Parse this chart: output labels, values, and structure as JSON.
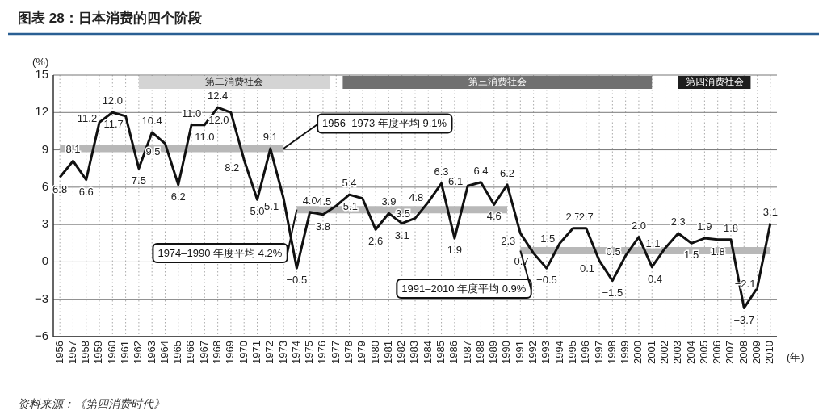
{
  "chart_data": {
    "type": "line",
    "title": "图表 28：日本消费的四个阶段",
    "xlabel": "(年)",
    "ylabel": "(%)",
    "x": [
      1956,
      1957,
      1958,
      1959,
      1960,
      1961,
      1962,
      1963,
      1964,
      1965,
      1966,
      1967,
      1968,
      1969,
      1970,
      1971,
      1972,
      1973,
      1974,
      1975,
      1976,
      1977,
      1978,
      1979,
      1980,
      1981,
      1982,
      1983,
      1984,
      1985,
      1986,
      1987,
      1988,
      1989,
      1990,
      1991,
      1992,
      1993,
      1994,
      1995,
      1996,
      1997,
      1998,
      1999,
      2000,
      2001,
      2002,
      2003,
      2004,
      2005,
      2006,
      2007,
      2008,
      2009,
      2010
    ],
    "xlim": [
      1955.5,
      2010.5
    ],
    "xticks": [
      1956,
      1957,
      1958,
      1959,
      1960,
      1961,
      1962,
      1963,
      1964,
      1965,
      1966,
      1967,
      1968,
      1969,
      1970,
      1971,
      1972,
      1973,
      1974,
      1975,
      1976,
      1977,
      1978,
      1979,
      1980,
      1981,
      1982,
      1983,
      1984,
      1985,
      1986,
      1987,
      1988,
      1989,
      1990,
      1991,
      1992,
      1993,
      1994,
      1995,
      1996,
      1997,
      1998,
      1999,
      2000,
      2001,
      2002,
      2003,
      2004,
      2005,
      2006,
      2007,
      2008,
      2009,
      2010
    ],
    "ylim": [
      -6,
      15
    ],
    "yticks": [
      -6,
      -3,
      0,
      3,
      6,
      9,
      12,
      15
    ],
    "grid": true,
    "series": [
      {
        "color": "#111111",
        "values": [
          6.8,
          8.1,
          6.6,
          11.2,
          12.0,
          11.7,
          7.5,
          10.4,
          9.5,
          6.2,
          11.0,
          11.0,
          12.4,
          12.0,
          8.2,
          5.0,
          9.1,
          5.1,
          -0.5,
          4.0,
          3.8,
          4.5,
          5.4,
          5.1,
          2.6,
          3.9,
          3.1,
          3.5,
          4.8,
          6.3,
          1.9,
          6.1,
          6.4,
          4.6,
          6.2,
          2.3,
          0.7,
          -0.5,
          1.5,
          2.7,
          2.7,
          0.1,
          -1.5,
          0.5,
          2.0,
          -0.4,
          1.1,
          2.3,
          1.5,
          1.9,
          1.8,
          1.8,
          -3.7,
          -2.1,
          3.1
        ],
        "value_labels": [
          "6.8",
          "8.1",
          "6.6",
          "11.2",
          "12.0",
          "11.7",
          "7.5",
          "10.4",
          "9.5",
          "6.2",
          "11.0",
          "11.0",
          "12.4",
          "12.0",
          "8.2",
          "5.0",
          "9.1",
          "5.1",
          "−0.5",
          "4.0",
          "3.8",
          "4.5",
          "5.4",
          "5.1",
          "2.6",
          "3.9",
          "3.1",
          "3.5",
          "4.8",
          "6.3",
          "1.9",
          "6.1",
          "6.4",
          "4.6",
          "6.2",
          "2.3",
          "0.7",
          "−0.5",
          "1.5",
          "2.7",
          "2.7",
          "0.1",
          "−1.5",
          "0.5",
          "2.0",
          "−0.4",
          "1.1",
          "2.3",
          "1.5",
          "1.9",
          "1.8",
          "1.8",
          "−3.7",
          "−2.1",
          "3.1"
        ]
      },
      {
        "type": "line",
        "x": [
          1956,
          1973
        ],
        "values": [
          9.1,
          9.1
        ],
        "color": "#b8b8b8"
      },
      {
        "type": "line",
        "x": [
          1974,
          1990
        ],
        "values": [
          4.2,
          4.2
        ],
        "color": "#b8b8b8"
      },
      {
        "type": "line",
        "x": [
          1991,
          2010
        ],
        "values": [
          0.9,
          0.9
        ],
        "color": "#b8b8b8"
      }
    ],
    "bands": [
      {
        "axis": "x",
        "from": 1962,
        "to": 1976.5,
        "label": "第二消费社会",
        "color": "#d4d4d4"
      },
      {
        "axis": "x",
        "from": 1977.5,
        "to": 2001,
        "label": "第三消费社会",
        "color": "#707070"
      },
      {
        "axis": "x",
        "from": 2003,
        "to": 2008.5,
        "label": "第四消费社会",
        "color": "#1e1e1e"
      }
    ],
    "annotations": [
      {
        "text": "1956–1973 年度平均 9.1%",
        "x": 1973,
        "y": 9.1
      },
      {
        "text": "1974–1990 年度平均 4.2%",
        "x": 1974,
        "y": 4.2
      },
      {
        "text": "1991–2010 年度平均 0.9%",
        "x": 1991,
        "y": 0.9
      },
      "资料来源：《第四消费时代》"
    ]
  }
}
